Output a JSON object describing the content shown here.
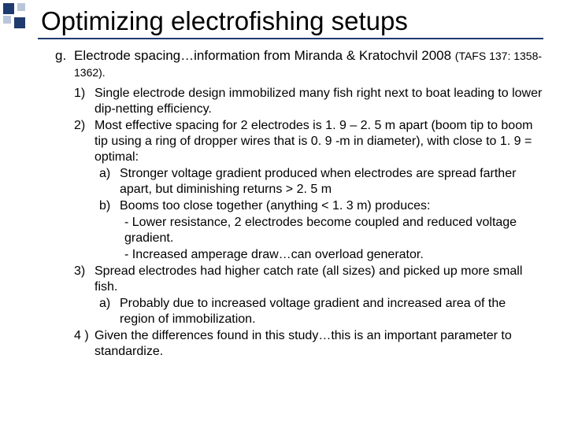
{
  "decoration": {
    "colors": {
      "dark": "#1f3a6e",
      "light": "#b9c5db"
    }
  },
  "title": "Optimizing electrofishing setups",
  "sectionLetter": "g.",
  "sectionText": "Electrode spacing…information from Miranda & Kratochvil 2008 ",
  "citation": "(TAFS 137: 1358-1362).",
  "items": [
    {
      "n": "1)",
      "text": "Single electrode design immobilized many fish right next to boat leading to lower dip-netting efficiency."
    },
    {
      "n": "2)",
      "text": "Most effective spacing for 2 electrodes is 1. 9 – 2. 5 m apart (boom tip to boom tip using a ring of dropper wires that is 0. 9 -m in diameter), with close to 1. 9 = optimal:",
      "sub": [
        {
          "n": "a)",
          "text": "Stronger voltage gradient produced when electrodes are spread farther apart, but diminishing returns > 2. 5 m"
        },
        {
          "n": "b)",
          "text": "Booms too close together (anything < 1. 3 m) produces:",
          "dash": [
            "- Lower resistance, 2 electrodes become coupled and reduced voltage gradient.",
            "- Increased amperage draw…can overload generator."
          ]
        }
      ]
    },
    {
      "n": "3)",
      "text": "Spread electrodes had higher catch rate (all sizes) and picked up more small fish.",
      "sub": [
        {
          "n": "a)",
          "text": "Probably due to increased voltage gradient and increased area of the region of immobilization."
        }
      ]
    },
    {
      "n": "4 )",
      "text": "Given the differences found in this study…this is an important parameter to standardize."
    }
  ]
}
